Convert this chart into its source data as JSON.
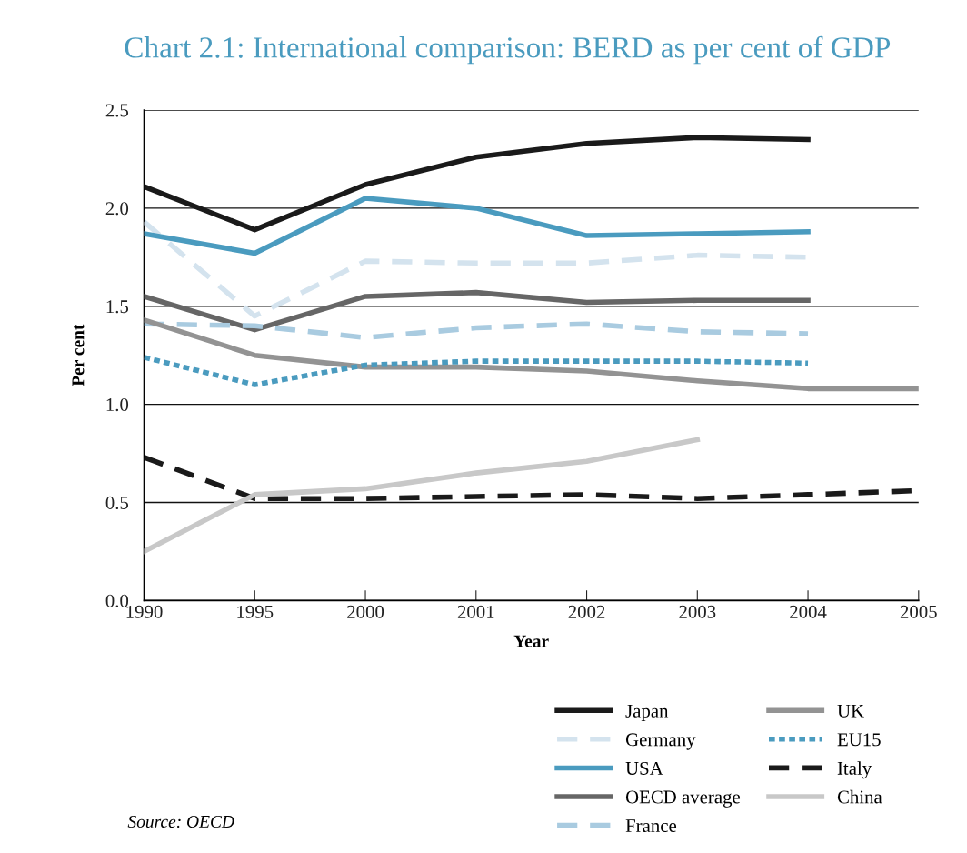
{
  "chart_data": {
    "type": "line",
    "title": "Chart 2.1: International comparison: BERD as per cent of GDP",
    "xlabel": "Year",
    "ylabel": "Per cent",
    "categories": [
      "1990",
      "1995",
      "2000",
      "2001",
      "2002",
      "2003",
      "2004",
      "2005"
    ],
    "ylim": [
      0,
      2.5
    ],
    "yticks": [
      {
        "value": 0,
        "label": "0.0"
      },
      {
        "value": 0.5,
        "label": "0.5"
      },
      {
        "value": 1,
        "label": "1.0"
      },
      {
        "value": 1.5,
        "label": "1.5"
      },
      {
        "value": 2,
        "label": "2.0"
      },
      {
        "value": 2.5,
        "label": "2.5"
      }
    ],
    "grid": "y",
    "legend": "bottom right",
    "marker": "none",
    "annotations": [
      "Source: OECD"
    ],
    "series": [
      {
        "name": "Japan",
        "color": "#1a1a1a",
        "line_style": "solid",
        "values": [
          2.11,
          1.89,
          2.12,
          2.26,
          2.33,
          2.36,
          2.35,
          null
        ]
      },
      {
        "name": "Germany",
        "color": "#d4e3ee",
        "line_style": "dashed",
        "values": [
          1.93,
          1.45,
          1.73,
          1.72,
          1.72,
          1.76,
          1.75,
          null
        ]
      },
      {
        "name": "USA",
        "color": "#4a9bbf",
        "line_style": "solid",
        "values": [
          1.87,
          1.77,
          2.05,
          2.0,
          1.86,
          1.87,
          1.88,
          null
        ]
      },
      {
        "name": "OECD average",
        "color": "#666666",
        "line_style": "solid",
        "values": [
          1.55,
          1.38,
          1.55,
          1.57,
          1.52,
          1.53,
          1.53,
          null
        ]
      },
      {
        "name": "France",
        "color": "#a9cbe0",
        "line_style": "dashed",
        "values": [
          1.41,
          1.4,
          1.34,
          1.39,
          1.41,
          1.37,
          1.36,
          null
        ]
      },
      {
        "name": "UK",
        "color": "#939393",
        "line_style": "solid",
        "values": [
          1.43,
          1.25,
          1.19,
          1.19,
          1.17,
          1.12,
          1.08,
          1.08
        ]
      },
      {
        "name": "EU15",
        "color": "#4a9bbf",
        "line_style": "dotted",
        "values": [
          1.24,
          1.1,
          1.2,
          1.22,
          1.22,
          1.22,
          1.21,
          null
        ]
      },
      {
        "name": "Italy",
        "color": "#1a1a1a",
        "line_style": "dashed",
        "values": [
          0.73,
          0.52,
          0.52,
          0.53,
          0.54,
          0.52,
          0.54,
          0.56
        ]
      },
      {
        "name": "China",
        "color": "#c8c8c8",
        "line_style": "solid",
        "values": [
          0.25,
          0.54,
          0.57,
          0.65,
          0.71,
          0.82,
          null,
          null
        ]
      }
    ]
  }
}
